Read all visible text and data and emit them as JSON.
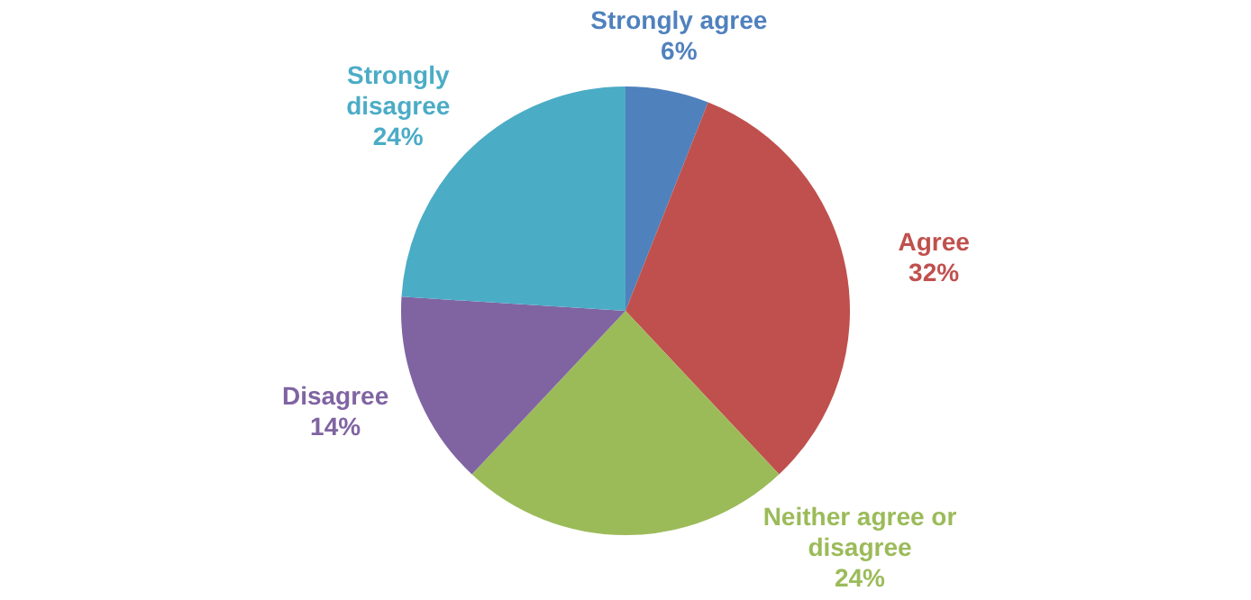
{
  "chart_data": {
    "type": "pie",
    "categories": [
      "Strongly agree",
      "Agree",
      "Neither agree or disagree",
      "Disagree",
      "Strongly disagree"
    ],
    "values": [
      6,
      32,
      24,
      14,
      24
    ],
    "value_labels": [
      "6%",
      "32%",
      "24%",
      "14%",
      "24%"
    ],
    "colors": [
      "#4f81bd",
      "#c0504d",
      "#9bbb59",
      "#8064a2",
      "#4bacc6"
    ],
    "legend": false
  }
}
